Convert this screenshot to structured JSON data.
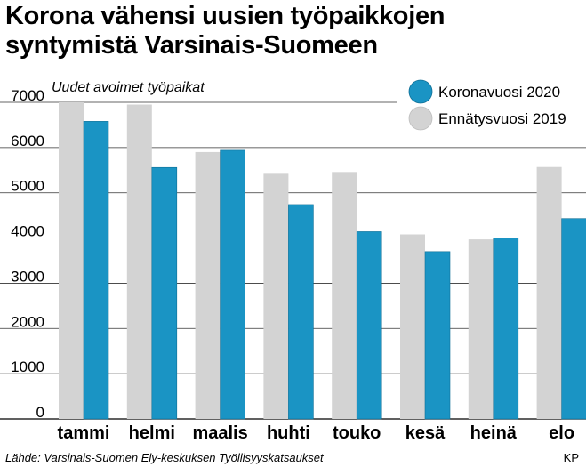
{
  "title_line1": "Korona vähensi uusien työpaikkojen",
  "title_line2": "syntymistä Varsinais-Suomeen",
  "source": "Lähde: Varsinais-Suomen Ely-keskuksen Työllisyyskatsaukset",
  "credit": "KP",
  "chart_data": {
    "type": "bar",
    "ylabel": "Uudet avoimet työpaikat",
    "categories": [
      "tammi",
      "helmi",
      "maalis",
      "huhti",
      "touko",
      "kesä",
      "heinä",
      "elo"
    ],
    "series": [
      {
        "name": "Ennätysvuosi 2019",
        "color": "#d3d3d3",
        "values": [
          7000,
          6950,
          5900,
          5420,
          5460,
          4080,
          3970,
          5570
        ]
      },
      {
        "name": "Koronavuosi 2020",
        "color": "#1a94c4",
        "values": [
          6580,
          5560,
          5940,
          4740,
          4140,
          3700,
          4000,
          4430
        ]
      }
    ],
    "ylim": [
      0,
      7000
    ],
    "yticks": [
      0,
      1000,
      2000,
      3000,
      4000,
      5000,
      6000,
      7000
    ],
    "grid": true,
    "legend": "top-right"
  }
}
